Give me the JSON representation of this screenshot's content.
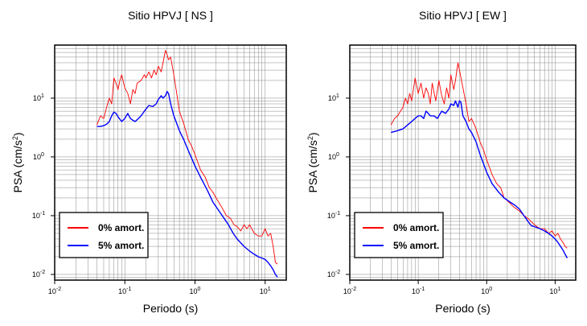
{
  "chart_data": [
    {
      "type": "line",
      "title": "Sitio HPVJ [ NS ]",
      "xlabel": "Periodo (s)",
      "ylabel_main": "PSA (cm/s",
      "ylabel_sup": "2",
      "ylabel_tail": ")",
      "x_scale": "log",
      "y_scale": "log",
      "xlim": [
        0.01,
        20
      ],
      "ylim": [
        0.008,
        80
      ],
      "x_ticks": [
        {
          "value": 0.01,
          "base": "10",
          "exp": "-2"
        },
        {
          "value": 0.1,
          "base": "10",
          "exp": "-1"
        },
        {
          "value": 1,
          "base": "10",
          "exp": "0"
        },
        {
          "value": 10,
          "base": "10",
          "exp": "1"
        }
      ],
      "y_ticks": [
        {
          "value": 0.01,
          "base": "10",
          "exp": "-2"
        },
        {
          "value": 0.1,
          "base": "10",
          "exp": "-1"
        },
        {
          "value": 1,
          "base": "10",
          "exp": "0"
        },
        {
          "value": 10,
          "base": "10",
          "exp": "1"
        }
      ],
      "grid": true,
      "legend_position": "bottom-left",
      "series": [
        {
          "name": "0% amort.",
          "color": "#ff0000",
          "x": [
            0.04,
            0.045,
            0.05,
            0.055,
            0.06,
            0.065,
            0.07,
            0.075,
            0.08,
            0.085,
            0.09,
            0.1,
            0.11,
            0.12,
            0.13,
            0.14,
            0.15,
            0.17,
            0.19,
            0.2,
            0.22,
            0.24,
            0.26,
            0.28,
            0.3,
            0.33,
            0.35,
            0.38,
            0.4,
            0.42,
            0.45,
            0.5,
            0.55,
            0.6,
            0.7,
            0.8,
            0.9,
            1.0,
            1.2,
            1.4,
            1.6,
            1.8,
            2.0,
            2.4,
            2.8,
            3.2,
            3.6,
            4.0,
            4.5,
            5.0,
            5.5,
            6.0,
            7.0,
            8.0,
            9.0,
            10,
            11,
            12,
            13,
            14,
            15
          ],
          "y": [
            3.5,
            5,
            4.5,
            7,
            10,
            8,
            22,
            18,
            14,
            20,
            25,
            15,
            12,
            8,
            14,
            12,
            18,
            20,
            25,
            22,
            28,
            22,
            30,
            25,
            35,
            28,
            40,
            65,
            55,
            45,
            50,
            25,
            12,
            6,
            3.5,
            2,
            1.5,
            1.1,
            0.6,
            0.45,
            0.3,
            0.25,
            0.2,
            0.14,
            0.1,
            0.09,
            0.07,
            0.065,
            0.055,
            0.07,
            0.06,
            0.07,
            0.05,
            0.045,
            0.045,
            0.06,
            0.045,
            0.05,
            0.03,
            0.016,
            0.015
          ]
        },
        {
          "name": "5% amort.",
          "color": "#0000ff",
          "x": [
            0.04,
            0.045,
            0.05,
            0.055,
            0.06,
            0.065,
            0.07,
            0.075,
            0.08,
            0.09,
            0.1,
            0.11,
            0.12,
            0.13,
            0.14,
            0.15,
            0.17,
            0.19,
            0.2,
            0.22,
            0.25,
            0.28,
            0.3,
            0.33,
            0.35,
            0.38,
            0.4,
            0.42,
            0.45,
            0.5,
            0.6,
            0.7,
            0.8,
            1.0,
            1.2,
            1.5,
            1.8,
            2.2,
            2.6,
            3.0,
            3.5,
            4.0,
            5.0,
            6.0,
            7.0,
            8.0,
            9.0,
            10,
            11,
            12,
            13,
            14,
            15
          ],
          "y": [
            3.3,
            3.3,
            3.4,
            3.6,
            4.0,
            5.0,
            5.8,
            5.5,
            4.8,
            4.0,
            4.5,
            5.5,
            4.5,
            4.2,
            4.0,
            4.3,
            5.0,
            6.0,
            6.5,
            7.5,
            7.2,
            8.0,
            9.5,
            11,
            10,
            11,
            13,
            12,
            8,
            5,
            2.8,
            1.9,
            1.3,
            0.7,
            0.45,
            0.27,
            0.17,
            0.12,
            0.09,
            0.07,
            0.05,
            0.04,
            0.03,
            0.025,
            0.022,
            0.02,
            0.019,
            0.018,
            0.016,
            0.014,
            0.012,
            0.01,
            0.009
          ]
        }
      ]
    },
    {
      "type": "line",
      "title": "Sitio HPVJ [ EW ]",
      "xlabel": "Periodo (s)",
      "ylabel_main": "PSA (cm/s",
      "ylabel_sup": "2",
      "ylabel_tail": ")",
      "x_scale": "log",
      "y_scale": "log",
      "xlim": [
        0.01,
        20
      ],
      "ylim": [
        0.008,
        80
      ],
      "x_ticks": [
        {
          "value": 0.01,
          "base": "10",
          "exp": "-2"
        },
        {
          "value": 0.1,
          "base": "10",
          "exp": "-1"
        },
        {
          "value": 1,
          "base": "10",
          "exp": "0"
        },
        {
          "value": 10,
          "base": "10",
          "exp": "1"
        }
      ],
      "y_ticks": [
        {
          "value": 0.01,
          "base": "10",
          "exp": "-2"
        },
        {
          "value": 0.1,
          "base": "10",
          "exp": "-1"
        },
        {
          "value": 1,
          "base": "10",
          "exp": "0"
        },
        {
          "value": 10,
          "base": "10",
          "exp": "1"
        }
      ],
      "grid": true,
      "legend_position": "bottom-left",
      "series": [
        {
          "name": "0% amort.",
          "color": "#ff0000",
          "x": [
            0.04,
            0.045,
            0.05,
            0.055,
            0.06,
            0.065,
            0.07,
            0.075,
            0.08,
            0.085,
            0.09,
            0.1,
            0.11,
            0.12,
            0.13,
            0.14,
            0.15,
            0.16,
            0.18,
            0.2,
            0.22,
            0.24,
            0.26,
            0.28,
            0.3,
            0.33,
            0.35,
            0.38,
            0.4,
            0.45,
            0.5,
            0.55,
            0.6,
            0.7,
            0.8,
            0.9,
            1.0,
            1.2,
            1.4,
            1.6,
            1.8,
            2.0,
            2.5,
            3.0,
            3.5,
            4.0,
            5.0,
            6.0,
            7.0,
            8.0,
            9.0,
            10,
            11,
            12,
            13,
            14,
            15
          ],
          "y": [
            3.5,
            4.5,
            5,
            6,
            7,
            10,
            8,
            12,
            9,
            14,
            22,
            12,
            18,
            10,
            15,
            12,
            8,
            18,
            9,
            20,
            11,
            8,
            15,
            10,
            25,
            14,
            20,
            40,
            30,
            15,
            8,
            4,
            4.5,
            3,
            1.8,
            1.3,
            0.9,
            0.5,
            0.35,
            0.3,
            0.2,
            0.18,
            0.14,
            0.12,
            0.1,
            0.09,
            0.07,
            0.06,
            0.06,
            0.05,
            0.055,
            0.045,
            0.05,
            0.04,
            0.035,
            0.03,
            0.028
          ]
        },
        {
          "name": "5% amort.",
          "color": "#0000ff",
          "x": [
            0.04,
            0.05,
            0.06,
            0.07,
            0.08,
            0.09,
            0.1,
            0.11,
            0.12,
            0.13,
            0.14,
            0.15,
            0.17,
            0.19,
            0.2,
            0.22,
            0.25,
            0.28,
            0.3,
            0.33,
            0.35,
            0.38,
            0.4,
            0.42,
            0.45,
            0.5,
            0.55,
            0.6,
            0.7,
            0.8,
            1.0,
            1.2,
            1.5,
            1.8,
            2.2,
            2.6,
            3.0,
            3.5,
            4.0,
            4.5,
            5.0,
            6.0,
            7.0,
            8.0,
            9.0,
            10,
            11,
            12,
            13,
            14,
            15
          ],
          "y": [
            2.6,
            2.8,
            3.0,
            3.5,
            4.0,
            4.5,
            5.0,
            5.0,
            4.5,
            6.0,
            5.5,
            5.0,
            5.0,
            4.5,
            5.0,
            6.0,
            5.5,
            6.5,
            8.0,
            7.5,
            9.0,
            7.0,
            9.0,
            8.5,
            5.0,
            4.0,
            3.0,
            2.6,
            1.8,
            1.1,
            0.55,
            0.35,
            0.25,
            0.2,
            0.17,
            0.15,
            0.13,
            0.1,
            0.08,
            0.067,
            0.065,
            0.06,
            0.055,
            0.05,
            0.045,
            0.04,
            0.035,
            0.03,
            0.026,
            0.022,
            0.019
          ]
        }
      ]
    }
  ]
}
